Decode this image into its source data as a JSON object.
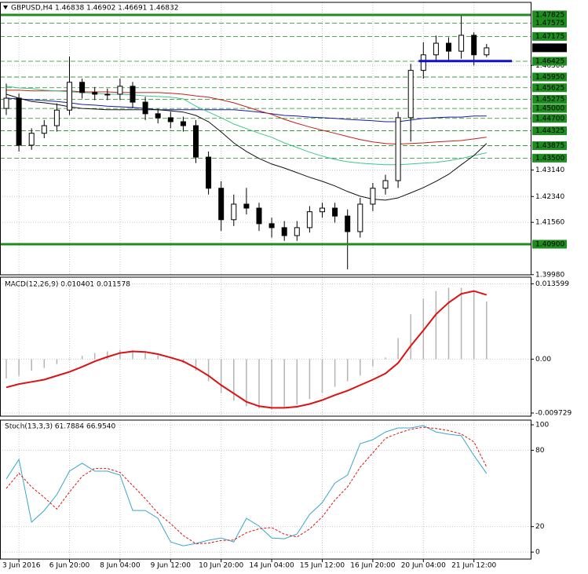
{
  "chart_data": [
    {
      "type": "candlestick",
      "title": "GBPUSD,H4  1.46838 1.46902 1.46691 1.46832",
      "categories": [
        null,
        "3 Jun 2016",
        null,
        null,
        null,
        "6 Jun 20:00",
        null,
        null,
        null,
        "8 Jun 04:00",
        null,
        null,
        null,
        "9 Jun 12:00",
        null,
        null,
        null,
        "10 Jun 20:00",
        null,
        null,
        null,
        "14 Jun 04:00",
        null,
        null,
        null,
        "15 Jun 12:00",
        null,
        null,
        null,
        "16 Jun 20:00",
        null,
        null,
        null,
        "20 Jun 04:00",
        null,
        null,
        null,
        "21 Jun 12:00",
        null
      ],
      "open": [
        1.45,
        1.4531,
        1.4389,
        1.4425,
        1.4448,
        1.4495,
        1.4579,
        1.4548,
        1.4543,
        1.4543,
        1.4567,
        1.4519,
        1.4484,
        1.4472,
        1.446,
        1.4448,
        1.4353,
        1.4259,
        1.4164,
        1.4211,
        1.4199,
        1.4152,
        1.414,
        1.4116,
        1.414,
        1.4188,
        1.4199,
        1.4175,
        1.4128,
        1.4211,
        1.4259,
        1.4282,
        1.4472,
        1.4615,
        1.4662,
        1.4697,
        1.4673,
        1.4721,
        1.4662
      ],
      "high": [
        1.4575,
        1.4545,
        1.444,
        1.4465,
        1.4515,
        1.4657,
        1.459,
        1.4565,
        1.456,
        1.459,
        1.458,
        1.4535,
        1.45,
        1.449,
        1.4475,
        1.4465,
        1.437,
        1.428,
        1.424,
        1.426,
        1.4215,
        1.417,
        1.416,
        1.416,
        1.4205,
        1.4215,
        1.4215,
        1.4195,
        1.423,
        1.4275,
        1.43,
        1.449,
        1.4635,
        1.47,
        1.472,
        1.4715,
        1.478,
        1.473,
        1.4695
      ],
      "low": [
        1.448,
        1.437,
        1.4375,
        1.441,
        1.443,
        1.448,
        1.453,
        1.4525,
        1.4525,
        1.4525,
        1.45,
        1.4465,
        1.4455,
        1.444,
        1.443,
        1.4335,
        1.424,
        1.413,
        1.4145,
        1.418,
        1.413,
        1.411,
        1.41,
        1.41,
        1.4125,
        1.417,
        1.4155,
        1.4014,
        1.411,
        1.419,
        1.424,
        1.426,
        1.44,
        1.459,
        1.464,
        1.464,
        1.465,
        1.463,
        1.4655
      ],
      "close": [
        1.4531,
        1.4389,
        1.4425,
        1.4448,
        1.4495,
        1.4579,
        1.4548,
        1.4543,
        1.4543,
        1.4567,
        1.4519,
        1.4484,
        1.4472,
        1.446,
        1.4448,
        1.4353,
        1.4259,
        1.4164,
        1.4211,
        1.4199,
        1.4152,
        1.414,
        1.4116,
        1.414,
        1.4188,
        1.4199,
        1.4175,
        1.4128,
        1.4211,
        1.4259,
        1.4282,
        1.4472,
        1.4615,
        1.4662,
        1.4697,
        1.4673,
        1.4721,
        1.4662,
        1.4683
      ],
      "series": [
        {
          "color": "#1a1aa0",
          "values": [
            1.4531,
            1.4529,
            1.4526,
            1.4524,
            1.4521,
            1.4517,
            1.4512,
            1.451,
            1.4507,
            1.4505,
            1.4503,
            1.45,
            1.4496,
            1.4496,
            1.4496,
            1.4496,
            1.4496,
            1.4496,
            1.4496,
            1.4493,
            1.4489,
            1.4484,
            1.4479,
            1.4477,
            1.4474,
            1.4472,
            1.447,
            1.4467,
            1.4465,
            1.4463,
            1.446,
            1.446,
            1.4465,
            1.447,
            1.4472,
            1.4474,
            1.4474,
            1.4477,
            1.4477
          ]
        },
        {
          "color": "#c0201a",
          "values": [
            1.4555,
            1.4555,
            1.4553,
            1.4553,
            1.4553,
            1.4553,
            1.455,
            1.455,
            1.455,
            1.4548,
            1.4548,
            1.4548,
            1.4548,
            1.4546,
            1.4543,
            1.4538,
            1.4534,
            1.4526,
            1.4517,
            1.4505,
            1.4493,
            1.4482,
            1.4467,
            1.4455,
            1.4444,
            1.4434,
            1.4425,
            1.4415,
            1.4406,
            1.4399,
            1.4394,
            1.4392,
            1.4394,
            1.4396,
            1.4399,
            1.4401,
            1.4403,
            1.4408,
            1.4413
          ]
        },
        {
          "color": "#3cc88c",
          "values": [
            1.4567,
            1.4562,
            1.456,
            1.4555,
            1.4553,
            1.455,
            1.4548,
            1.4546,
            1.4543,
            1.4543,
            1.4541,
            1.4538,
            1.4536,
            1.4534,
            1.4529,
            1.4507,
            1.4489,
            1.4472,
            1.4453,
            1.4439,
            1.4425,
            1.4413,
            1.4396,
            1.4382,
            1.4368,
            1.4356,
            1.4346,
            1.4339,
            1.4335,
            1.4332,
            1.433,
            1.433,
            1.4332,
            1.4335,
            1.4337,
            1.4342,
            1.4349,
            1.4358,
            1.4366
          ]
        },
        {
          "color": "#111111",
          "values": [
            1.4543,
            1.4531,
            1.4521,
            1.4517,
            1.4512,
            1.4505,
            1.45,
            1.4498,
            1.4496,
            1.4496,
            1.4496,
            1.4496,
            1.4496,
            1.4493,
            1.4489,
            1.4479,
            1.446,
            1.4429,
            1.4396,
            1.437,
            1.4349,
            1.4332,
            1.432,
            1.4306,
            1.4292,
            1.428,
            1.4266,
            1.4249,
            1.4235,
            1.4226,
            1.4223,
            1.423,
            1.4245,
            1.4261,
            1.428,
            1.4301,
            1.433,
            1.4358,
            1.4394
          ]
        }
      ],
      "ylim": [
        1.39975,
        1.48204
      ],
      "yticks": [
        {
          "value": 1.463,
          "label": "1.46300"
        },
        {
          "value": 1.4314,
          "label": "1.43140"
        },
        {
          "value": 1.4234,
          "label": "1.42340"
        },
        {
          "value": 1.4156,
          "label": "1.41560"
        },
        {
          "value": 1.3998,
          "label": "1.39980"
        }
      ],
      "key_levels": [
        1.47825,
        {
          "value": 1.409,
          "label": "1.40900"
        }
      ],
      "levels": [
        1.47575,
        1.47175,
        1.46425,
        {
          "value": 1.4595,
          "label": "1.45950"
        },
        1.45625,
        1.45275,
        {
          "value": 1.45,
          "label": "1.45000"
        },
        {
          "value": 1.447,
          "label": "1.44700"
        },
        1.44325,
        1.43875,
        {
          "value": 1.435,
          "label": "1.43500"
        }
      ],
      "level_color": "#1e8c1e",
      "marker_line": {
        "value": 1.4643,
        "color": "#1010d0"
      },
      "last_price": 1.46832,
      "grid": true
    },
    {
      "type": "macd",
      "title": "MACD(12,26,9) 0.010401 0.011578",
      "series": [
        {
          "color": "#b4b4b4",
          "values": [
            -0.0035,
            -0.003,
            -0.0021,
            -0.0016,
            -0.0009,
            -0.0001,
            0.0006,
            0.0011,
            0.0014,
            0.0017,
            0.0016,
            0.0013,
            0.0007,
            0.0001,
            -0.0007,
            -0.0021,
            -0.004,
            -0.0061,
            -0.0075,
            -0.0085,
            -0.0089,
            -0.0091,
            -0.0089,
            -0.0082,
            -0.0072,
            -0.0061,
            -0.005,
            -0.004,
            -0.003,
            -0.0013,
            0.0003,
            0.0038,
            0.0081,
            0.0109,
            0.0123,
            0.0129,
            0.0129,
            0.0123,
            0.0104
          ]
        },
        {
          "color": "#dd1111",
          "values": [
            -0.0051,
            -0.0045,
            -0.0041,
            -0.0037,
            -0.003,
            -0.0023,
            -0.0014,
            -0.0004,
            0.0004,
            0.0011,
            0.0014,
            0.0013,
            0.0009,
            0.0003,
            -0.0004,
            -0.0016,
            -0.003,
            -0.0047,
            -0.0062,
            -0.0077,
            -0.0085,
            -0.0088,
            -0.0088,
            -0.0086,
            -0.0081,
            -0.0074,
            -0.0065,
            -0.0057,
            -0.0047,
            -0.0037,
            -0.0026,
            -0.0007,
            0.0024,
            0.0052,
            0.0081,
            0.0102,
            0.0118,
            0.0123,
            0.0116
          ]
        }
      ],
      "ylim": [
        -0.0103,
        0.0148
      ],
      "yticks": [
        0.013599,
        {
          "value": 0,
          "label": "0.00"
        },
        -0.009729
      ],
      "grid": true
    },
    {
      "type": "line",
      "title": "Stoch(13,3,3) 61.7884 66.9540",
      "series": [
        {
          "color": "#38a8c8",
          "values": [
            57.4,
            72.8,
            23.5,
            32.7,
            45.1,
            63.6,
            69.8,
            63.6,
            63.6,
            60.5,
            32.7,
            32.7,
            26.5,
            8.0,
            4.9,
            6.8,
            9.3,
            11.1,
            8.0,
            26.5,
            20.4,
            11.1,
            10.5,
            14.2,
            29.6,
            38.9,
            54.3,
            60.5,
            85.2,
            88.3,
            94.4,
            97.5,
            97.5,
            99.4,
            94.4,
            92.6,
            91.4,
            75.9,
            61.7884
          ]
        },
        {
          "color": "#dd1111",
          "dashed": true,
          "values": [
            50,
            62,
            51.2,
            43,
            33.8,
            47.1,
            59.5,
            65.7,
            65.7,
            62.6,
            52.3,
            42,
            30.6,
            22.4,
            13.1,
            6.6,
            7.0,
            9.1,
            9.5,
            15.2,
            18.3,
            19.3,
            14.0,
            11.9,
            18.1,
            27.6,
            40.9,
            51.2,
            66.7,
            78.0,
            89.3,
            93.4,
            96.5,
            98.1,
            97.1,
            95.5,
            92.8,
            86.6,
            66.954
          ]
        }
      ],
      "ylim": [
        -5.5,
        103.7
      ],
      "yticks": [
        100,
        80,
        20,
        0
      ],
      "grid": true
    }
  ]
}
